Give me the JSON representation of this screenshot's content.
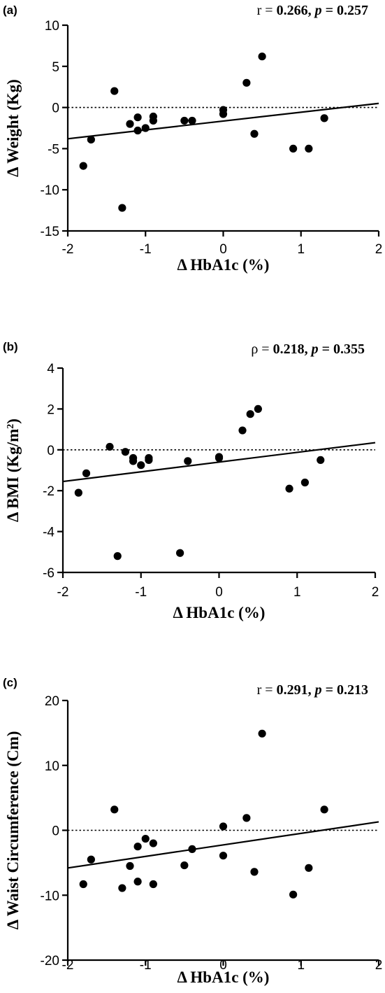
{
  "chart_data": [
    {
      "type": "scatter",
      "panel": "(a)",
      "annotation": {
        "lead": "r = ",
        "stat": "0.266",
        "p_label": "p",
        "p_value": "0.257"
      },
      "xlabel": "Δ HbA1c (%)",
      "ylabel": "Δ Weight (Kg)",
      "ylabel_sup": "",
      "ylabel_suffix": "",
      "xlim": [
        -2,
        2
      ],
      "ylim": [
        -15,
        10
      ],
      "xticks": [
        -2,
        -1,
        0,
        1,
        2
      ],
      "yticks": [
        -15,
        -10,
        -5,
        0,
        5,
        10
      ],
      "reference_line_y": 0,
      "regression_line": [
        [
          -2,
          -3.8
        ],
        [
          2,
          0.5
        ]
      ],
      "points": [
        [
          -1.8,
          -7.1
        ],
        [
          -1.7,
          -3.9
        ],
        [
          -1.4,
          2.0
        ],
        [
          -1.3,
          -12.2
        ],
        [
          -1.2,
          -2.0
        ],
        [
          -1.1,
          -1.2
        ],
        [
          -1.1,
          -2.8
        ],
        [
          -1.0,
          -2.5
        ],
        [
          -0.9,
          -1.1
        ],
        [
          -0.9,
          -1.6
        ],
        [
          -0.5,
          -1.6
        ],
        [
          -0.4,
          -1.6
        ],
        [
          0.0,
          -0.3
        ],
        [
          0.0,
          -0.8
        ],
        [
          0.3,
          3.0
        ],
        [
          0.4,
          -3.2
        ],
        [
          0.5,
          6.2
        ],
        [
          0.9,
          -5.0
        ],
        [
          1.1,
          -5.0
        ],
        [
          1.3,
          -1.3
        ]
      ]
    },
    {
      "type": "scatter",
      "panel": "(b)",
      "annotation": {
        "lead": "ρ = ",
        "stat": "0.218",
        "p_label": "p",
        "p_value": "0.355"
      },
      "xlabel": "Δ HbA1c (%)",
      "ylabel": "Δ BMI (Kg/m",
      "ylabel_sup": "2",
      "ylabel_suffix": ")",
      "xlim": [
        -2,
        2
      ],
      "ylim": [
        -6,
        4
      ],
      "xticks": [
        -2,
        -1,
        0,
        1,
        2
      ],
      "yticks": [
        -6,
        -4,
        -2,
        0,
        2,
        4
      ],
      "reference_line_y": 0,
      "regression_line": [
        [
          -2,
          -1.55
        ],
        [
          2,
          0.35
        ]
      ],
      "points": [
        [
          -1.8,
          -2.1
        ],
        [
          -1.7,
          -1.15
        ],
        [
          -1.4,
          0.15
        ],
        [
          -1.3,
          -5.2
        ],
        [
          -1.2,
          -0.1
        ],
        [
          -1.1,
          -0.4
        ],
        [
          -1.1,
          -0.55
        ],
        [
          -1.0,
          -0.75
        ],
        [
          -0.9,
          -0.4
        ],
        [
          -0.9,
          -0.5
        ],
        [
          -0.5,
          -5.05
        ],
        [
          -0.4,
          -0.55
        ],
        [
          0.0,
          -0.35
        ],
        [
          0.0,
          -0.4
        ],
        [
          0.3,
          0.95
        ],
        [
          0.4,
          1.75
        ],
        [
          0.5,
          2.0
        ],
        [
          0.9,
          -1.9
        ],
        [
          1.1,
          -1.6
        ],
        [
          1.3,
          -0.5
        ]
      ]
    },
    {
      "type": "scatter",
      "panel": "(c)",
      "annotation": {
        "lead": "r = ",
        "stat": "0.291",
        "p_label": "p",
        "p_value": "0.213"
      },
      "xlabel": "Δ HbA1c (%)",
      "ylabel": "Δ Waist Circumference (Cm)",
      "ylabel_sup": "",
      "ylabel_suffix": "",
      "xlim": [
        -2,
        2
      ],
      "ylim": [
        -20,
        20
      ],
      "xticks": [
        -2,
        -1,
        0,
        1,
        2
      ],
      "yticks": [
        -20,
        -10,
        0,
        10,
        20
      ],
      "reference_line_y": 0,
      "regression_line": [
        [
          -2,
          -5.8
        ],
        [
          2,
          1.3
        ]
      ],
      "points": [
        [
          -1.8,
          -8.3
        ],
        [
          -1.7,
          -4.5
        ],
        [
          -1.4,
          3.2
        ],
        [
          -1.3,
          -8.9
        ],
        [
          -1.2,
          -5.5
        ],
        [
          -1.1,
          -2.5
        ],
        [
          -1.1,
          -7.9
        ],
        [
          -1.0,
          -1.3
        ],
        [
          -0.9,
          -2.0
        ],
        [
          -0.9,
          -8.3
        ],
        [
          -0.5,
          -5.4
        ],
        [
          -0.4,
          -2.9
        ],
        [
          0.0,
          -3.9
        ],
        [
          0.0,
          0.6
        ],
        [
          0.3,
          1.9
        ],
        [
          0.4,
          -6.4
        ],
        [
          0.5,
          14.9
        ],
        [
          0.9,
          -9.9
        ],
        [
          1.1,
          -5.8
        ],
        [
          1.3,
          3.2
        ]
      ]
    }
  ]
}
